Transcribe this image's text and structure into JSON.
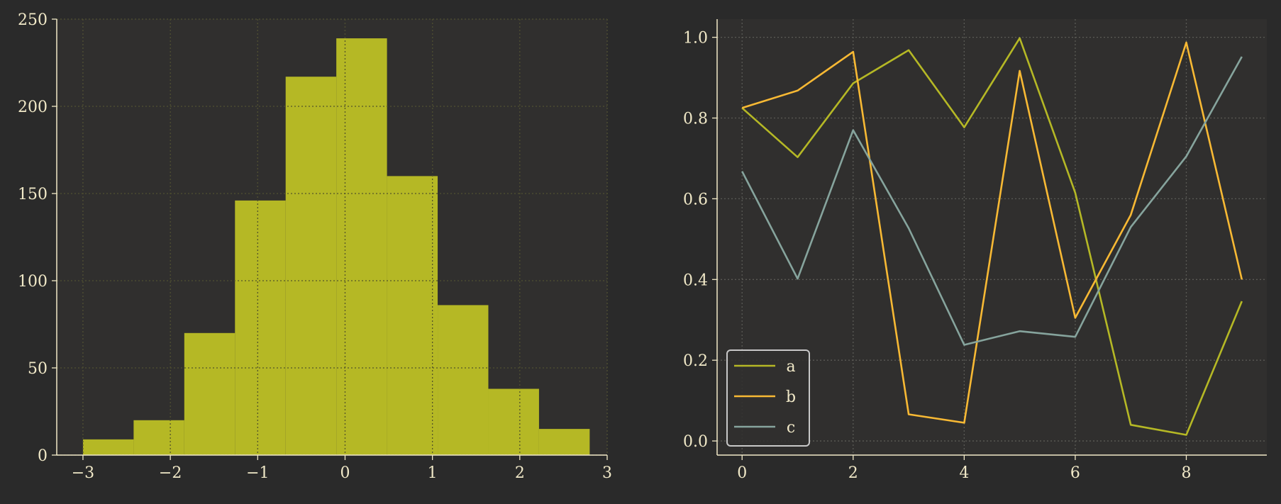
{
  "colors": {
    "figure_bg": "#2a2a2a",
    "axes_bg": "#302f2e",
    "text": "#f1e9c8",
    "grid": "#5a5a55",
    "hist_fill": "#b5b825",
    "series_a": "#b5b825",
    "series_b": "#f8b934",
    "series_c": "#86a49d",
    "legend_edge": "#c8c8c8"
  },
  "chart_data": [
    {
      "type": "bar",
      "subtype": "histogram",
      "bin_edges": [
        -3.0,
        -2.42,
        -1.84,
        -1.26,
        -0.68,
        -0.1,
        0.48,
        1.06,
        1.64,
        2.22,
        2.8
      ],
      "values": [
        9,
        20,
        70,
        146,
        217,
        239,
        160,
        86,
        38,
        15
      ],
      "xlim": [
        -3.3,
        3.0
      ],
      "ylim": [
        0,
        250
      ],
      "xticks": [
        -3,
        -2,
        -1,
        0,
        1,
        2,
        3
      ],
      "xtick_labels": [
        "−3",
        "−2",
        "−1",
        "0",
        "1",
        "2",
        "3"
      ],
      "yticks": [
        0,
        50,
        100,
        150,
        200,
        250
      ],
      "ytick_labels": [
        "0",
        "50",
        "100",
        "150",
        "200",
        "250"
      ],
      "grid": true,
      "title": "",
      "xlabel": "",
      "ylabel": ""
    },
    {
      "type": "line",
      "x": [
        0,
        1,
        2,
        3,
        4,
        5,
        6,
        7,
        8,
        9
      ],
      "series": [
        {
          "name": "a",
          "color": "#b5b825",
          "values": [
            0.825,
            0.703,
            0.886,
            0.968,
            0.777,
            0.998,
            0.615,
            0.04,
            0.015,
            0.346
          ]
        },
        {
          "name": "b",
          "color": "#f8b934",
          "values": [
            0.825,
            0.868,
            0.964,
            0.066,
            0.045,
            0.917,
            0.305,
            0.56,
            0.987,
            0.4
          ]
        },
        {
          "name": "c",
          "color": "#86a49d",
          "values": [
            0.668,
            0.402,
            0.77,
            0.527,
            0.238,
            0.272,
            0.258,
            0.53,
            0.705,
            0.952
          ]
        }
      ],
      "xlim": [
        -0.45,
        9.45
      ],
      "ylim": [
        -0.035,
        1.045
      ],
      "xticks": [
        0,
        2,
        4,
        6,
        8
      ],
      "xtick_labels": [
        "0",
        "2",
        "4",
        "6",
        "8"
      ],
      "yticks": [
        0.0,
        0.2,
        0.4,
        0.6,
        0.8,
        1.0
      ],
      "ytick_labels": [
        "0.0",
        "0.2",
        "0.4",
        "0.6",
        "0.8",
        "1.0"
      ],
      "grid": true,
      "legend": {
        "placement": "lower-left",
        "entries": [
          "a",
          "b",
          "c"
        ]
      },
      "title": "",
      "xlabel": "",
      "ylabel": ""
    }
  ]
}
